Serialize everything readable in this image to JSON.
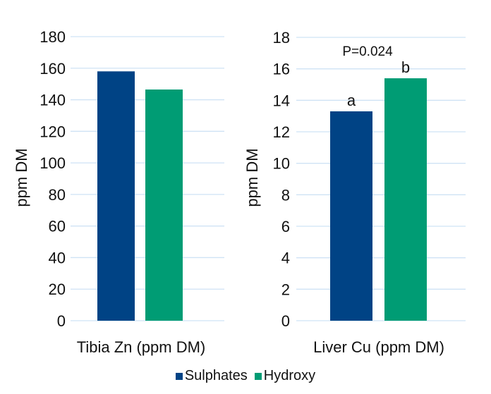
{
  "chart_data": [
    {
      "type": "bar",
      "title": "",
      "xlabel": "Tibia Zn (ppm DM)",
      "ylabel": "ppm DM",
      "ylim": [
        0,
        180
      ],
      "yticks": [
        0,
        20,
        40,
        60,
        80,
        100,
        120,
        140,
        160,
        180
      ],
      "grid": true,
      "categories": [
        "Tibia Zn (ppm DM)"
      ],
      "series": [
        {
          "name": "Sulphates",
          "values": [
            158
          ]
        },
        {
          "name": "Hydroxy",
          "values": [
            146.5
          ]
        }
      ],
      "annotations": []
    },
    {
      "type": "bar",
      "title": "",
      "xlabel": "Liver Cu (ppm DM)",
      "ylabel": "ppm DM",
      "ylim": [
        0,
        18
      ],
      "yticks": [
        0,
        2,
        4,
        6,
        8,
        10,
        12,
        14,
        16,
        18
      ],
      "grid": true,
      "categories": [
        "Liver Cu (ppm DM)"
      ],
      "series": [
        {
          "name": "Sulphates",
          "values": [
            13.3
          ]
        },
        {
          "name": "Hydroxy",
          "values": [
            15.4
          ]
        }
      ],
      "annotations": [
        "P=0.024"
      ],
      "bar_letters": [
        "a",
        "b"
      ]
    }
  ],
  "legend": {
    "placement": "bottom",
    "items": [
      {
        "label": "Sulphates",
        "color": "#004385"
      },
      {
        "label": "Hydroxy",
        "color": "#009c74"
      }
    ]
  },
  "colors": {
    "grid": "#cfe3f5",
    "sulphates": "#004385",
    "hydroxy": "#009c74"
  }
}
